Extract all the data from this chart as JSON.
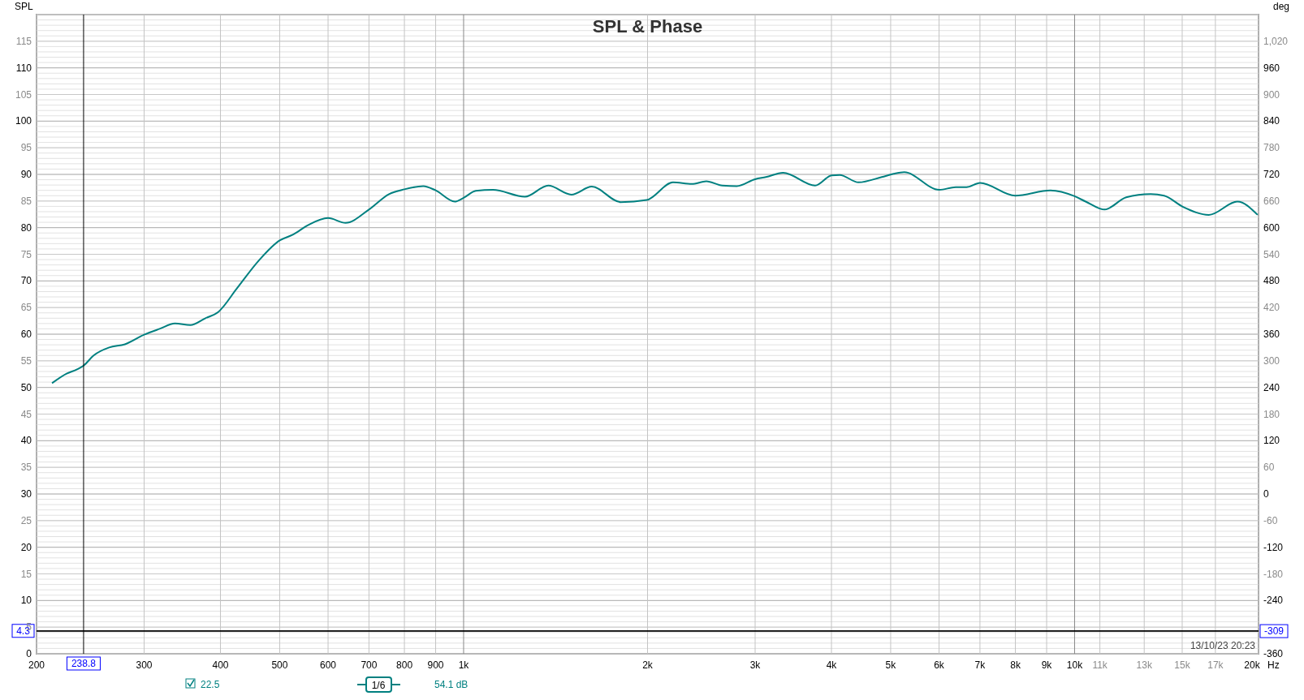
{
  "chart_data": {
    "type": "line",
    "title": "SPL & Phase",
    "ylabel": "SPL",
    "y2label": "deg",
    "log": "x",
    "grid": true,
    "legend": "bottom",
    "marker": "none",
    "line_style": "solid",
    "xlim": [
      200,
      20000
    ],
    "xticks": [
      200,
      300,
      400,
      500,
      600,
      700,
      800,
      900,
      {
        "value": 1000,
        "label": "1k"
      },
      {
        "value": 2000,
        "label": "2k"
      },
      {
        "value": 3000,
        "label": "3k"
      },
      {
        "value": 4000,
        "label": "4k"
      },
      {
        "value": 5000,
        "label": "5k"
      },
      {
        "value": 6000,
        "label": "6k"
      },
      {
        "value": 7000,
        "label": "7k"
      },
      {
        "value": 8000,
        "label": "8k"
      },
      {
        "value": 9000,
        "label": "9k"
      },
      {
        "value": 10000,
        "label": "10k"
      },
      {
        "value": 11000,
        "label": "11k"
      },
      {
        "value": 13000,
        "label": "13k"
      },
      {
        "value": 15000,
        "label": "15k"
      },
      {
        "value": 17000,
        "label": "17k"
      },
      {
        "value": 20000,
        "label": "20k"
      }
    ],
    "xlabel": "Hz",
    "ylim": [
      0,
      120
    ],
    "yticks": [
      0,
      5,
      10,
      15,
      20,
      25,
      30,
      35,
      40,
      45,
      50,
      55,
      60,
      65,
      70,
      75,
      80,
      85,
      90,
      95,
      100,
      105,
      110,
      115
    ],
    "y2lim": [
      -360,
      1080
    ],
    "y2ticks": [
      -360,
      -240,
      -180,
      -120,
      -60,
      0,
      60,
      120,
      180,
      240,
      300,
      360,
      420,
      480,
      540,
      600,
      660,
      720,
      780,
      840,
      900,
      960,
      {
        "value": 1020,
        "label": "1,020"
      }
    ],
    "ref_lines": [
      {
        "axis": "x",
        "value": 238.8,
        "label": "238.8",
        "color": "#000000"
      },
      {
        "axis": "y",
        "value": 4.3,
        "label": "4.3",
        "color": "#000000"
      },
      {
        "axis": "y2",
        "value": -309,
        "label": "-309",
        "color": "#000000"
      }
    ],
    "annotations": [
      "13/10/23 20:23",
      "1/6",
      "54.1 dB"
    ],
    "series": [
      {
        "name": "22.5",
        "color": "#008080",
        "x": [
          212,
          224,
          233,
          238.8,
          248,
          263,
          279,
          300,
          318,
          337,
          357,
          378,
          397,
          425,
          462,
          500,
          526,
          557,
          600,
          641,
          700,
          755,
          800,
          859,
          900,
          967,
          1000,
          1047,
          1117,
          1260,
          1376,
          1501,
          1621,
          1808,
          1995,
          2201,
          2363,
          2496,
          2651,
          2800,
          3000,
          3124,
          3334,
          3761,
          4000,
          4126,
          4429,
          4835,
          5053,
          5262,
          6006,
          6388,
          6653,
          7003,
          7996,
          9130,
          10000,
          10425,
          11196,
          12146,
          13316,
          14011,
          15052,
          16586,
          18463,
          19930
        ],
        "values": [
          50.8,
          52.6,
          53.4,
          54.1,
          56.0,
          57.5,
          58.1,
          59.9,
          61.0,
          62.0,
          61.7,
          63.0,
          64.2,
          68.5,
          73.8,
          77.6,
          78.7,
          80.5,
          81.8,
          80.9,
          83.4,
          86.3,
          87.2,
          87.8,
          87.0,
          84.9,
          85.6,
          86.9,
          87.1,
          85.8,
          87.9,
          86.2,
          87.7,
          84.8,
          85.2,
          88.5,
          88.2,
          88.7,
          87.9,
          87.8,
          89.1,
          89.5,
          90.3,
          87.9,
          89.8,
          89.9,
          88.5,
          89.5,
          90.1,
          90.4,
          87.1,
          87.6,
          87.6,
          88.4,
          86.0,
          87.0,
          85.9,
          84.9,
          83.4,
          85.7,
          86.3,
          86.0,
          83.9,
          82.4,
          84.9,
          82.4
        ]
      }
    ]
  }
}
